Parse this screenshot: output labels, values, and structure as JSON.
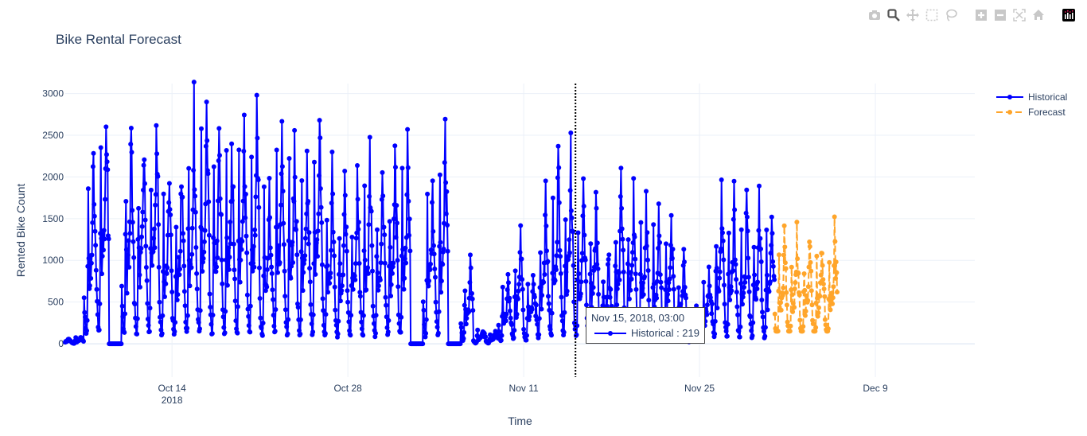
{
  "title": "Bike Rental Forecast",
  "modebar": [
    "camera-icon",
    "zoom-icon",
    "pan-icon",
    "box-select-icon",
    "lasso-icon",
    "zoom-in-icon",
    "zoom-out-icon",
    "autoscale-icon",
    "home-icon",
    "plotly-logo-icon"
  ],
  "tooltip": {
    "header": "Nov 15, 2018, 03:00",
    "series": "Historical",
    "value": 219,
    "text": "Historical : 219",
    "time": "2018-11-15T03:00"
  },
  "chart_data": {
    "type": "line",
    "title": "Bike Rental Forecast",
    "xlabel": "Time",
    "ylabel": "Rented Bike Count",
    "xlim": [
      "2018-10-05T12:00",
      "2018-12-16T22:00"
    ],
    "ylim": [
      -400,
      3120
    ],
    "yticks": [
      0,
      500,
      1000,
      1500,
      2000,
      2500,
      3000
    ],
    "xticks": [
      {
        "date": "2018-10-14",
        "label": "Oct 14",
        "sublabel": "2018"
      },
      {
        "date": "2018-10-28",
        "label": "Oct 28",
        "sublabel": ""
      },
      {
        "date": "2018-11-11",
        "label": "Nov 11",
        "sublabel": ""
      },
      {
        "date": "2018-11-25",
        "label": "Nov 25",
        "sublabel": ""
      },
      {
        "date": "2018-12-09",
        "label": "Dec 9",
        "sublabel": ""
      }
    ],
    "grid": true,
    "legend_position": "top-right",
    "hourly_profile": [
      0.25,
      0.18,
      0.12,
      0.08,
      0.05,
      0.06,
      0.15,
      0.45,
      0.8,
      0.45,
      0.3,
      0.35,
      0.4,
      0.42,
      0.45,
      0.5,
      0.6,
      0.8,
      1.0,
      0.85,
      0.7,
      0.65,
      0.55,
      0.4
    ],
    "series": [
      {
        "name": "Historical",
        "color": "#0000ff",
        "dash": "solid",
        "start": "2018-10-05T12:00",
        "first_day": "2018-10-05",
        "daily_peaks": [
          60,
          80,
          2270,
          2790,
          0,
          2520,
          2380,
          2620,
          2040,
          2100,
          2620,
          2720,
          2450,
          2500,
          2640,
          2600,
          2000,
          2620,
          2420,
          2130,
          2640,
          2000,
          1880,
          1900,
          2080,
          2050,
          2260,
          2320,
          0,
          1980,
          2360,
          0,
          950,
          180,
          150,
          760,
          1250,
          830,
          1700,
          2100,
          2200,
          1700,
          1700,
          1050,
          1900,
          1860,
          1600,
          1500,
          1500,
          1000,
          440,
          900,
          1700,
          1650,
          1650,
          1640,
          1620
        ]
      },
      {
        "name": "Forecast",
        "color": "#ffa52a",
        "dash": "dash",
        "start": "2018-12-01T00:00",
        "first_day": "2018-12-01",
        "daily_peaks": [
          1200,
          1230,
          1280,
          1250,
          1310
        ]
      }
    ]
  }
}
